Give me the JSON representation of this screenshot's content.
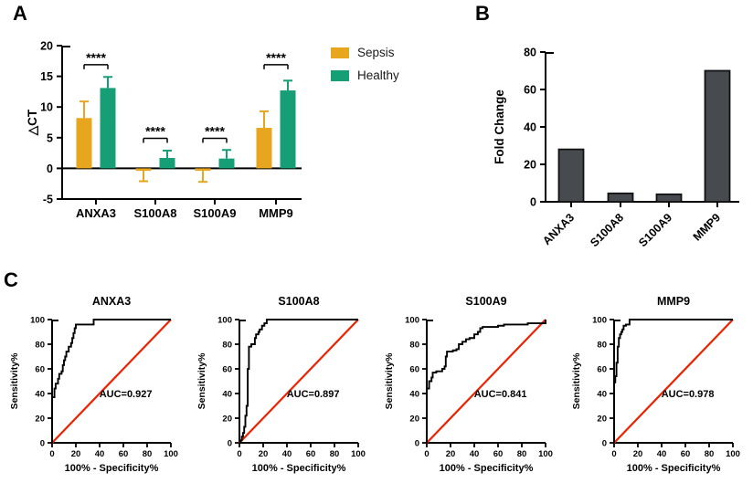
{
  "panels": {
    "a": {
      "label": "A"
    },
    "b": {
      "label": "B"
    },
    "c": {
      "label": "C"
    }
  },
  "colors": {
    "sepsis": "#E8A51E",
    "healthy": "#169E77",
    "fold_bar": "#474B50",
    "fold_bar_border": "#111111",
    "roc_curve": "#000000",
    "diagonal": "#ED2200",
    "axis": "#000000"
  },
  "chart_data": [
    {
      "id": "delta_ct",
      "type": "grouped_bar",
      "categories": [
        "ANXA3",
        "S100A8",
        "S100A9",
        "MMP9"
      ],
      "series": [
        {
          "name": "Sepsis",
          "color_key": "sepsis",
          "values": [
            8.2,
            -0.4,
            -0.4,
            6.6
          ],
          "errors": [
            2.7,
            1.7,
            1.8,
            2.7
          ]
        },
        {
          "name": "Healthy",
          "color_key": "healthy",
          "values": [
            13.1,
            1.7,
            1.6,
            12.7
          ],
          "errors": [
            1.8,
            1.2,
            1.4,
            1.6
          ]
        }
      ],
      "ylabel": "△CT",
      "ylim": [
        -5,
        20
      ],
      "yticks": [
        -5,
        0,
        5,
        10,
        15,
        20
      ],
      "significance": [
        {
          "category": "ANXA3",
          "label": "****",
          "bracket_y": 16.9
        },
        {
          "category": "S100A8",
          "label": "****",
          "bracket_y": 4.9
        },
        {
          "category": "S100A9",
          "label": "****",
          "bracket_y": 4.9
        },
        {
          "category": "MMP9",
          "label": "****",
          "bracket_y": 16.9
        }
      ],
      "legend_position": "right"
    },
    {
      "id": "fold_change",
      "type": "bar",
      "categories": [
        "ANXA3",
        "S100A8",
        "S100A9",
        "MMP9"
      ],
      "values": [
        28,
        4.5,
        4,
        70
      ],
      "ylabel": "Fold Change",
      "ylim": [
        0,
        80
      ],
      "yticks": [
        0,
        20,
        40,
        60,
        80
      ]
    },
    {
      "id": "roc_panels",
      "type": "line",
      "xlabel": "100% - Specificity%",
      "ylabel": "Sensitivity%",
      "ticks": [
        0,
        20,
        40,
        60,
        80,
        100
      ],
      "xlim": [
        0,
        100
      ],
      "ylim": [
        0,
        100
      ],
      "panels": [
        {
          "title": "ANXA3",
          "auc": 0.927,
          "auc_label": "AUC=0.927",
          "points": [
            [
              0,
              0
            ],
            [
              0,
              37
            ],
            [
              2,
              44
            ],
            [
              3,
              48
            ],
            [
              5,
              52
            ],
            [
              6,
              56
            ],
            [
              8,
              58
            ],
            [
              9,
              63
            ],
            [
              10,
              67
            ],
            [
              11,
              70
            ],
            [
              12,
              74
            ],
            [
              14,
              78
            ],
            [
              16,
              81
            ],
            [
              17,
              85
            ],
            [
              18,
              89
            ],
            [
              19,
              93
            ],
            [
              20,
              96
            ],
            [
              35,
              96
            ],
            [
              35,
              100
            ],
            [
              100,
              100
            ]
          ]
        },
        {
          "title": "S100A8",
          "auc": 0.897,
          "auc_label": "AUC=0.897",
          "points": [
            [
              0,
              0
            ],
            [
              1,
              2
            ],
            [
              2,
              5
            ],
            [
              3,
              8
            ],
            [
              4,
              13
            ],
            [
              5,
              22
            ],
            [
              6,
              30
            ],
            [
              7,
              60
            ],
            [
              8,
              65
            ],
            [
              8,
              78
            ],
            [
              10,
              80
            ],
            [
              12,
              80
            ],
            [
              13,
              85
            ],
            [
              14,
              88
            ],
            [
              16,
              90
            ],
            [
              17,
              92
            ],
            [
              19,
              95
            ],
            [
              21,
              97
            ],
            [
              23,
              100
            ],
            [
              100,
              100
            ]
          ]
        },
        {
          "title": "S100A9",
          "auc": 0.841,
          "auc_label": "AUC=0.841",
          "points": [
            [
              0,
              0
            ],
            [
              0,
              44
            ],
            [
              2,
              50
            ],
            [
              4,
              53
            ],
            [
              5,
              57
            ],
            [
              8,
              58
            ],
            [
              13,
              60
            ],
            [
              15,
              62
            ],
            [
              16,
              70
            ],
            [
              17,
              74
            ],
            [
              22,
              75
            ],
            [
              25,
              76
            ],
            [
              27,
              80
            ],
            [
              30,
              82
            ],
            [
              33,
              84
            ],
            [
              36,
              85
            ],
            [
              40,
              88
            ],
            [
              43,
              90
            ],
            [
              45,
              93
            ],
            [
              47,
              94
            ],
            [
              60,
              95
            ],
            [
              65,
              96
            ],
            [
              82,
              96
            ],
            [
              85,
              97
            ],
            [
              97,
              97
            ],
            [
              100,
              100
            ]
          ]
        },
        {
          "title": "MMP9",
          "auc": 0.978,
          "auc_label": "AUC=0.978",
          "points": [
            [
              0,
              0
            ],
            [
              0,
              49
            ],
            [
              1,
              54
            ],
            [
              2,
              65
            ],
            [
              3,
              70
            ],
            [
              3,
              78
            ],
            [
              4,
              81
            ],
            [
              4,
              85
            ],
            [
              5,
              88
            ],
            [
              6,
              90
            ],
            [
              7,
              92
            ],
            [
              8,
              95
            ],
            [
              10,
              96
            ],
            [
              13,
              97
            ],
            [
              13,
              100
            ],
            [
              18,
              100
            ],
            [
              100,
              100
            ]
          ]
        }
      ]
    }
  ]
}
